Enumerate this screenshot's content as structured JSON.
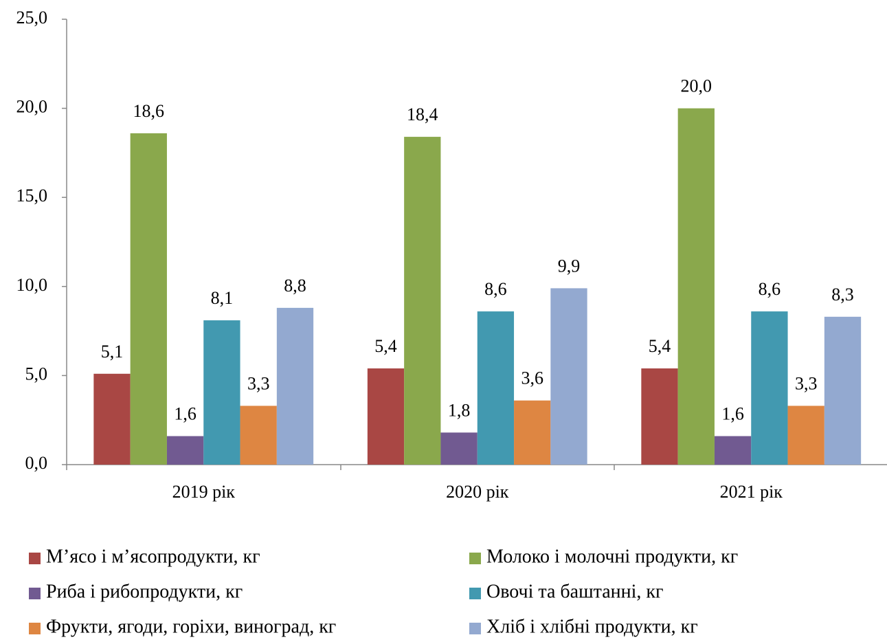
{
  "chart_data": {
    "type": "bar",
    "categories": [
      "2019 рік",
      "2020 рік",
      "2021 рік"
    ],
    "series": [
      {
        "name": "М’ясо і м’ясопродукти, кг",
        "color": "#a94744",
        "values": [
          5.1,
          5.4,
          5.4
        ],
        "value_labels": [
          "5,1",
          "5,4",
          "5,4"
        ]
      },
      {
        "name": "Молоко і молочні продукти, кг",
        "color": "#8aa84c",
        "values": [
          18.6,
          18.4,
          20.0
        ],
        "value_labels": [
          "18,6",
          "18,4",
          "20,0"
        ]
      },
      {
        "name": "Риба і рибопродукти, кг",
        "color": "#715a91",
        "values": [
          1.6,
          1.8,
          1.6
        ],
        "value_labels": [
          "1,6",
          "1,8",
          "1,6"
        ]
      },
      {
        "name": "Овочі та баштанні, кг",
        "color": "#4299b0",
        "values": [
          8.1,
          8.6,
          8.6
        ],
        "value_labels": [
          "8,1",
          "8,6",
          "8,6"
        ]
      },
      {
        "name": "Фрукти, ягоди, горіхи, виноград, кг",
        "color": "#de8642",
        "values": [
          3.3,
          3.6,
          3.3
        ],
        "value_labels": [
          "3,3",
          "3,6",
          "3,3"
        ]
      },
      {
        "name": "Хліб і хлібні продукти, кг",
        "color": "#93a9d0",
        "values": [
          8.8,
          9.9,
          8.3
        ],
        "value_labels": [
          "8,8",
          "9,9",
          "8,3"
        ]
      }
    ],
    "ylim": [
      0,
      25
    ],
    "yticks": [
      {
        "value": 0,
        "label": "0,0"
      },
      {
        "value": 5,
        "label": "5,0"
      },
      {
        "value": 10,
        "label": "10,0"
      },
      {
        "value": 15,
        "label": "15,0"
      },
      {
        "value": 20,
        "label": "20,0"
      },
      {
        "value": 25,
        "label": "25,0"
      }
    ],
    "legend": "bottom"
  }
}
